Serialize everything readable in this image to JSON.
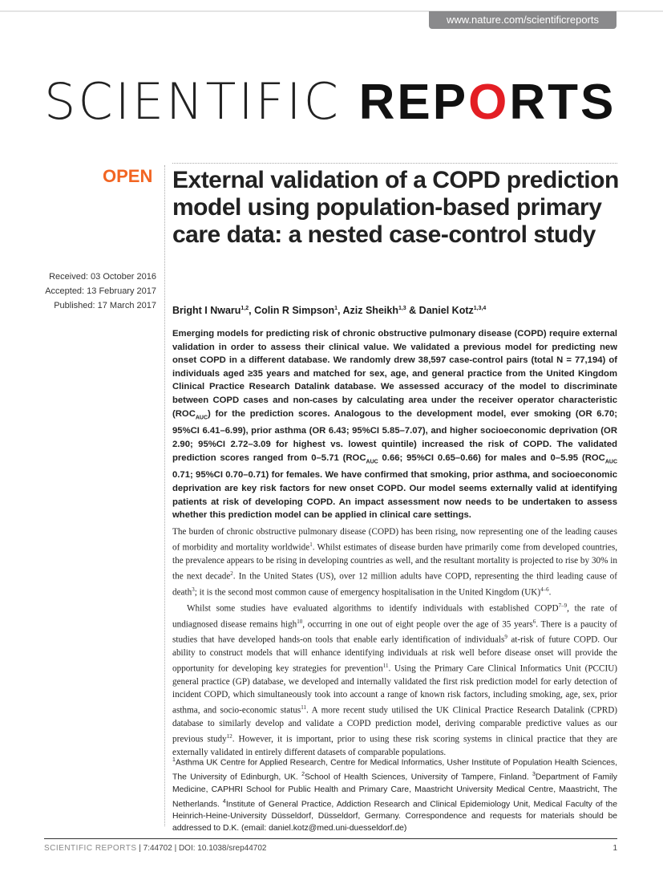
{
  "header": {
    "url": "www.nature.com/scientificreports",
    "logo_thin": "SCIENTIFIC ",
    "logo_bold1": "REP",
    "logo_gear": "O",
    "logo_bold2": "RTS"
  },
  "open_label": "OPEN",
  "dates": {
    "received": "Received: 03 October 2016",
    "accepted": "Accepted: 13 February 2017",
    "published": "Published: 17 March 2017"
  },
  "title": "External validation of a COPD prediction model using population-based primary care data: a nested case-control study",
  "authors": [
    {
      "t": "Bright I Nwaru"
    },
    {
      "t": "1,2",
      "sup": 1
    },
    {
      "t": ", Colin R Simpson"
    },
    {
      "t": "1",
      "sup": 1
    },
    {
      "t": ", Aziz Sheikh"
    },
    {
      "t": "1,3",
      "sup": 1
    },
    {
      "t": " & Daniel Kotz"
    },
    {
      "t": "1,3,4",
      "sup": 1
    }
  ],
  "abstract": [
    {
      "t": "Emerging models for predicting risk of chronic obstructive pulmonary disease (COPD) require external validation in order to assess their clinical value. We validated a previous model for predicting new onset COPD in a different database. We randomly drew 38,597 case-control pairs (total N = 77,194) of individuals aged ≥35 years and matched for sex, age, and general practice from the United Kingdom Clinical Practice Research Datalink database. We assessed accuracy of the model to discriminate between COPD cases and non-cases by calculating area under the receiver operator characteristic (ROC"
    },
    {
      "t": "AUC",
      "sub": 1
    },
    {
      "t": ") for the prediction scores. Analogous to the development model, ever smoking (OR 6.70; 95%CI 6.41–6.99), prior asthma (OR 6.43; 95%CI 5.85–7.07), and higher socioeconomic deprivation (OR 2.90; 95%CI 2.72–3.09 for highest vs. lowest quintile) increased the risk of COPD. The validated prediction scores ranged from 0–5.71 (ROC"
    },
    {
      "t": "AUC",
      "sub": 1
    },
    {
      "t": " 0.66; 95%CI 0.65–0.66) for males and 0–5.95 (ROC"
    },
    {
      "t": "AUC",
      "sub": 1
    },
    {
      "t": " 0.71; 95%CI 0.70–0.71) for females. We have confirmed that smoking, prior asthma, and socioeconomic deprivation are key risk factors for new onset COPD. Our model seems externally valid at identifying patients at risk of developing COPD. An impact assessment now needs to be undertaken to assess whether this prediction model can be applied in clinical care settings."
    }
  ],
  "body": [
    [
      {
        "t": "The burden of chronic obstructive pulmonary disease (COPD) has been rising, now representing one of the leading causes of morbidity and mortality worldwide"
      },
      {
        "t": "1",
        "sup": 1
      },
      {
        "t": ". Whilst estimates of disease burden have primarily come from developed countries, the prevalence appears to be rising in developing countries as well, and the resultant mortality is projected to rise by 30% in the next decade"
      },
      {
        "t": "2",
        "sup": 1
      },
      {
        "t": ". In the United States (US), over 12 million adults have COPD, representing the third leading cause of death"
      },
      {
        "t": "3",
        "sup": 1
      },
      {
        "t": "; it is the second most common cause of emergency hospitalisation in the United Kingdom (UK)"
      },
      {
        "t": "4–6",
        "sup": 1
      },
      {
        "t": "."
      }
    ],
    [
      {
        "t": "Whilst some studies have evaluated algorithms to identify individuals with established COPD"
      },
      {
        "t": "7–9",
        "sup": 1
      },
      {
        "t": ", the rate of undiagnosed disease remains high"
      },
      {
        "t": "10",
        "sup": 1
      },
      {
        "t": ", occurring in one out of eight people over the age of 35 years"
      },
      {
        "t": "6",
        "sup": 1
      },
      {
        "t": ". There is a paucity of studies that have developed hands-on tools that enable early identification of individuals"
      },
      {
        "t": "9",
        "sup": 1
      },
      {
        "t": " at-risk of future COPD. Our ability to construct models that will enhance identifying individuals at risk well before disease onset will provide the opportunity for developing key strategies for prevention"
      },
      {
        "t": "11",
        "sup": 1
      },
      {
        "t": ". Using the Primary Care Clinical Informatics Unit (PCCIU) general practice (GP) database, we developed and internally validated the first risk prediction model for early detection of incident COPD, which simultaneously took into account a range of known risk factors, including smoking, age, sex, prior asthma, and socio-economic status"
      },
      {
        "t": "11",
        "sup": 1
      },
      {
        "t": ". A more recent study utilised the UK Clinical Practice Research Datalink (CPRD) database to similarly develop and validate a COPD prediction model, deriving comparable predictive values as our previous study"
      },
      {
        "t": "12",
        "sup": 1
      },
      {
        "t": ". However, it is important, prior to using these risk scoring systems in clinical practice that they are externally validated in entirely different datasets of comparable populations."
      }
    ]
  ],
  "affiliations": [
    {
      "t": "1",
      "sup": 1
    },
    {
      "t": "Asthma UK Centre for Applied Research, Centre for Medical Informatics, Usher Institute of Population Health Sciences, The University of Edinburgh, UK. "
    },
    {
      "t": "2",
      "sup": 1
    },
    {
      "t": "School of Health Sciences, University of Tampere, Finland. "
    },
    {
      "t": "3",
      "sup": 1
    },
    {
      "t": "Department of Family Medicine, CAPHRI School for Public Health and Primary Care, Maastricht University Medical Centre, Maastricht, The Netherlands. "
    },
    {
      "t": "4",
      "sup": 1
    },
    {
      "t": "Institute of General Practice, Addiction Research and Clinical Epidemiology Unit, Medical Faculty of the Heinrich-Heine-University Düsseldorf, Düsseldorf, Germany. Correspondence and requests for materials should be addressed to D.K. (email: daniel.kotz@med.uni-duesseldorf.de)"
    }
  ],
  "footer": {
    "journal": "SCIENTIFIC REPORTS",
    "citation": " | 7:44702 | DOI: 10.1038/srep44702",
    "page": "1"
  },
  "colors": {
    "open": "#f26522",
    "gear": "#e31e24",
    "url_bg": "#8a8a8c"
  }
}
